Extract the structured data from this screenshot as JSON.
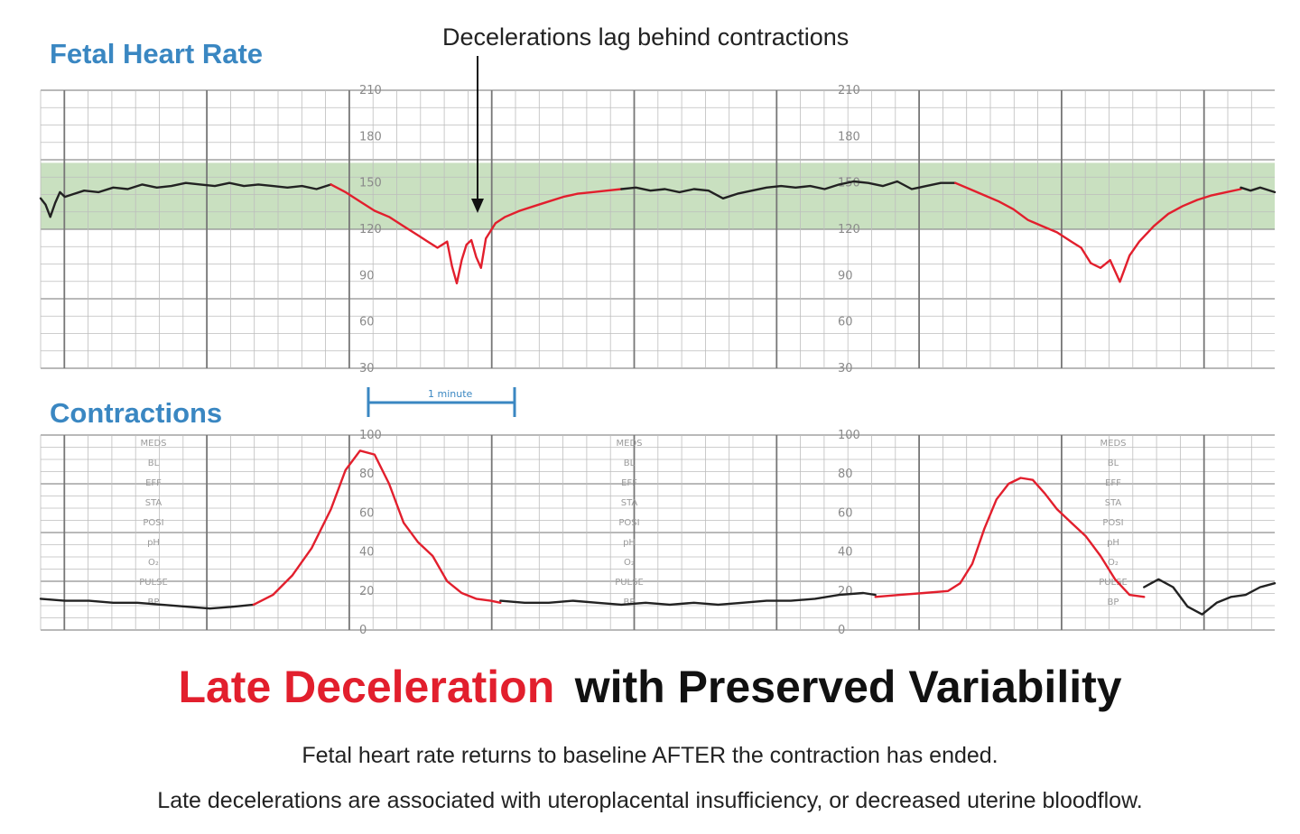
{
  "chart_data": [
    {
      "type": "line",
      "title": "Fetal Heart Rate",
      "annotation": "Decelerations lag behind contractions",
      "ylim": [
        30,
        210
      ],
      "ytick_values": [
        210,
        180,
        150,
        120,
        90,
        60,
        30
      ],
      "ytick_labels": [
        "210",
        "180",
        "150",
        "120",
        "90",
        "60",
        "30"
      ],
      "normal_band": [
        120,
        160
      ],
      "x_unit": "seconds",
      "xlim": [
        0,
        510
      ],
      "series": [
        {
          "color": "#222222",
          "x": [
            0,
            2,
            4,
            6,
            8,
            10,
            14,
            18,
            24,
            30,
            36,
            42,
            48,
            54,
            60,
            66,
            72,
            78,
            84,
            90,
            96,
            102,
            108,
            114,
            120
          ],
          "values": [
            140,
            136,
            128,
            137,
            144,
            141,
            143,
            145,
            144,
            147,
            146,
            149,
            147,
            148,
            150,
            149,
            148,
            150,
            148,
            149,
            148,
            147,
            148,
            146,
            149
          ]
        },
        {
          "color": "#e21f2d",
          "x": [
            120,
            126,
            132,
            138,
            144,
            150,
            156,
            160,
            164,
            168,
            170,
            172,
            174,
            176,
            178,
            180,
            182,
            184,
            188,
            192,
            198,
            204,
            210,
            216,
            222,
            228,
            234,
            240
          ],
          "values": [
            149,
            144,
            138,
            132,
            128,
            122,
            116,
            112,
            108,
            112,
            96,
            85,
            100,
            110,
            113,
            102,
            95,
            114,
            124,
            128,
            132,
            135,
            138,
            141,
            143,
            144,
            145,
            146
          ]
        },
        {
          "color": "#222222",
          "x": [
            240,
            246,
            252,
            258,
            264,
            270,
            276,
            282,
            288,
            294,
            300,
            306,
            312,
            318,
            324,
            330,
            336,
            342,
            348,
            354,
            360,
            366,
            372,
            378
          ],
          "values": [
            146,
            147,
            145,
            146,
            144,
            146,
            145,
            140,
            143,
            145,
            147,
            148,
            147,
            148,
            146,
            149,
            151,
            150,
            148,
            151,
            146,
            148,
            150,
            150
          ]
        },
        {
          "color": "#e21f2d",
          "x": [
            378,
            384,
            390,
            396,
            402,
            408,
            414,
            420,
            426,
            430,
            434,
            438,
            442,
            446,
            450,
            454,
            460,
            466,
            472,
            478,
            484,
            490,
            496
          ],
          "values": [
            150,
            146,
            142,
            138,
            133,
            126,
            122,
            118,
            112,
            108,
            98,
            95,
            100,
            86,
            103,
            112,
            122,
            130,
            135,
            139,
            142,
            144,
            146
          ]
        },
        {
          "color": "#222222",
          "x": [
            496,
            500,
            504,
            510
          ],
          "values": [
            147,
            145,
            147,
            144
          ]
        }
      ]
    },
    {
      "type": "line",
      "title": "Contractions",
      "scale_label": "1 minute",
      "ylim": [
        0,
        100
      ],
      "ytick_values": [
        100,
        80,
        60,
        40,
        20,
        0
      ],
      "ytick_labels": [
        "100",
        "80",
        "60",
        "40",
        "20",
        "0"
      ],
      "x_unit": "seconds",
      "xlim": [
        0,
        510
      ],
      "series": [
        {
          "color": "#222222",
          "x": [
            0,
            10,
            20,
            30,
            40,
            50,
            60,
            70,
            80,
            88
          ],
          "values": [
            16,
            15,
            15,
            14,
            14,
            13,
            12,
            11,
            12,
            13
          ]
        },
        {
          "color": "#e21f2d",
          "x": [
            88,
            96,
            104,
            112,
            120,
            126,
            132,
            138,
            144,
            150,
            156,
            162,
            168,
            174,
            180,
            186,
            190
          ],
          "values": [
            13,
            18,
            28,
            42,
            62,
            82,
            92,
            90,
            75,
            55,
            45,
            38,
            25,
            19,
            16,
            15,
            14
          ]
        },
        {
          "color": "#222222",
          "x": [
            190,
            200,
            210,
            220,
            230,
            240,
            250,
            260,
            270,
            280,
            290,
            300,
            310,
            320,
            330,
            340,
            345
          ],
          "values": [
            15,
            14,
            14,
            15,
            14,
            13,
            14,
            13,
            14,
            13,
            14,
            15,
            15,
            16,
            18,
            19,
            18
          ]
        },
        {
          "color": "#e21f2d",
          "x": [
            345,
            355,
            365,
            375,
            380,
            385,
            390,
            395,
            400,
            405,
            410,
            415,
            420,
            426,
            432,
            438,
            444,
            450,
            456
          ],
          "values": [
            17,
            18,
            19,
            20,
            24,
            34,
            52,
            67,
            75,
            78,
            77,
            70,
            62,
            55,
            48,
            38,
            26,
            18,
            17
          ]
        },
        {
          "color": "#222222",
          "x": [
            456,
            462,
            468,
            474,
            480,
            486,
            492,
            498,
            504,
            510
          ],
          "values": [
            22,
            26,
            22,
            12,
            8,
            14,
            17,
            18,
            22,
            24
          ]
        }
      ]
    }
  ],
  "strip_labels": [
    "MEDS",
    "BL",
    "EFF",
    "STA",
    "POSI",
    "pH",
    "O₂",
    "PULSE",
    "BP"
  ],
  "caption": {
    "title_red": "Late Deceleration",
    "title_black": "with Preserved Variability",
    "line1": "Fetal heart rate returns to baseline AFTER the contraction has ended.",
    "line2": "Late decelerations are associated with uteroplacental insufficiency, or decreased uterine bloodflow."
  },
  "colors": {
    "header": "#3a87c2",
    "band": "#c9e0c0",
    "grid_minor": "#bdbdbd",
    "grid_major": "#8f8f8f",
    "red": "#e21f2d",
    "black": "#222222"
  }
}
